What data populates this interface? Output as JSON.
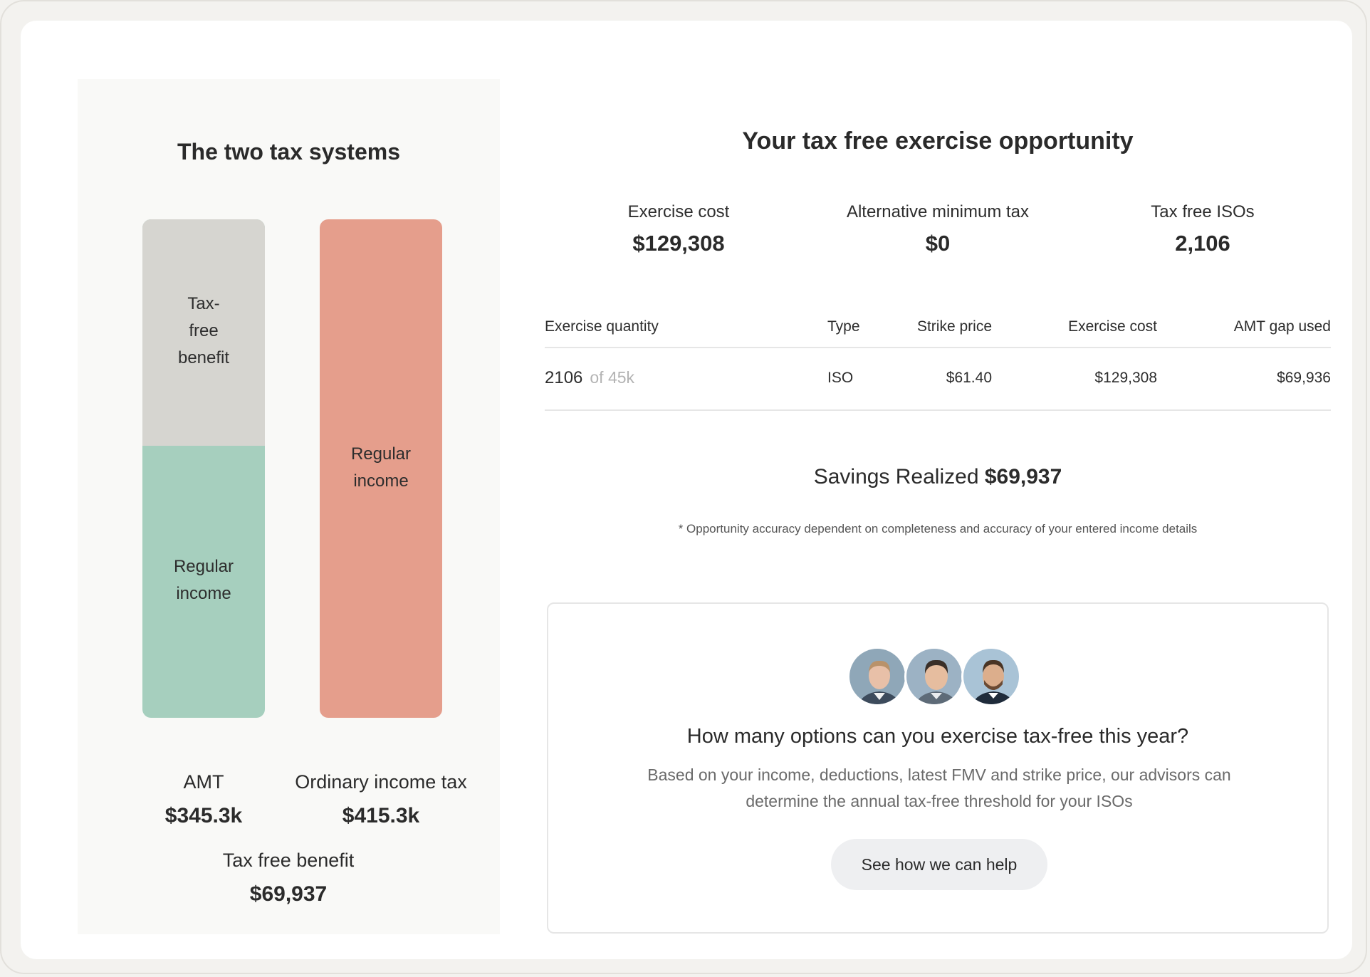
{
  "left_panel": {
    "title": "The two tax systems",
    "amt_bar": {
      "top_label_lines": [
        "Tax-",
        "free",
        "benefit"
      ],
      "bottom_label_lines": [
        "Regular",
        "income"
      ]
    },
    "ordinary_bar": {
      "label_lines": [
        "Regular",
        "income"
      ]
    },
    "amt": {
      "label": "AMT",
      "value": "$345.3k"
    },
    "ordinary": {
      "label": "Ordinary income tax",
      "value": "$415.3k"
    },
    "benefit": {
      "label": "Tax free benefit",
      "value": "$69,937"
    },
    "colors": {
      "tax_free": "#d6d5d0",
      "regular_income_amt": "#a6cfbe",
      "regular_income_ordinary": "#e59e8c"
    }
  },
  "main": {
    "title": "Your tax free exercise opportunity",
    "summary": [
      {
        "label": "Exercise cost",
        "value": "$129,308"
      },
      {
        "label": "Alternative minimum tax",
        "value": "$0"
      },
      {
        "label": "Tax free ISOs",
        "value": "2,106"
      }
    ],
    "table": {
      "headers": [
        "Exercise quantity",
        "Type",
        "Strike price",
        "Exercise cost",
        "AMT gap used"
      ],
      "rows": [
        {
          "quantity": "2106",
          "of_total": "of 45k",
          "type": "ISO",
          "strike_price": "$61.40",
          "exercise_cost": "$129,308",
          "amt_gap_used": "$69,936"
        }
      ]
    },
    "savings": {
      "label": "Savings Realized",
      "value": "$69,937"
    },
    "disclaimer": "* Opportunity accuracy dependent on completeness and accuracy of your entered income details"
  },
  "cta": {
    "avatars": [
      "advisor-1",
      "advisor-2",
      "advisor-3"
    ],
    "title": "How many options can you exercise tax-free this year?",
    "description": "Based on your income, deductions, latest FMV and strike price, our advisors can determine the annual tax-free threshold for your ISOs",
    "button_label": "See how we can help"
  }
}
